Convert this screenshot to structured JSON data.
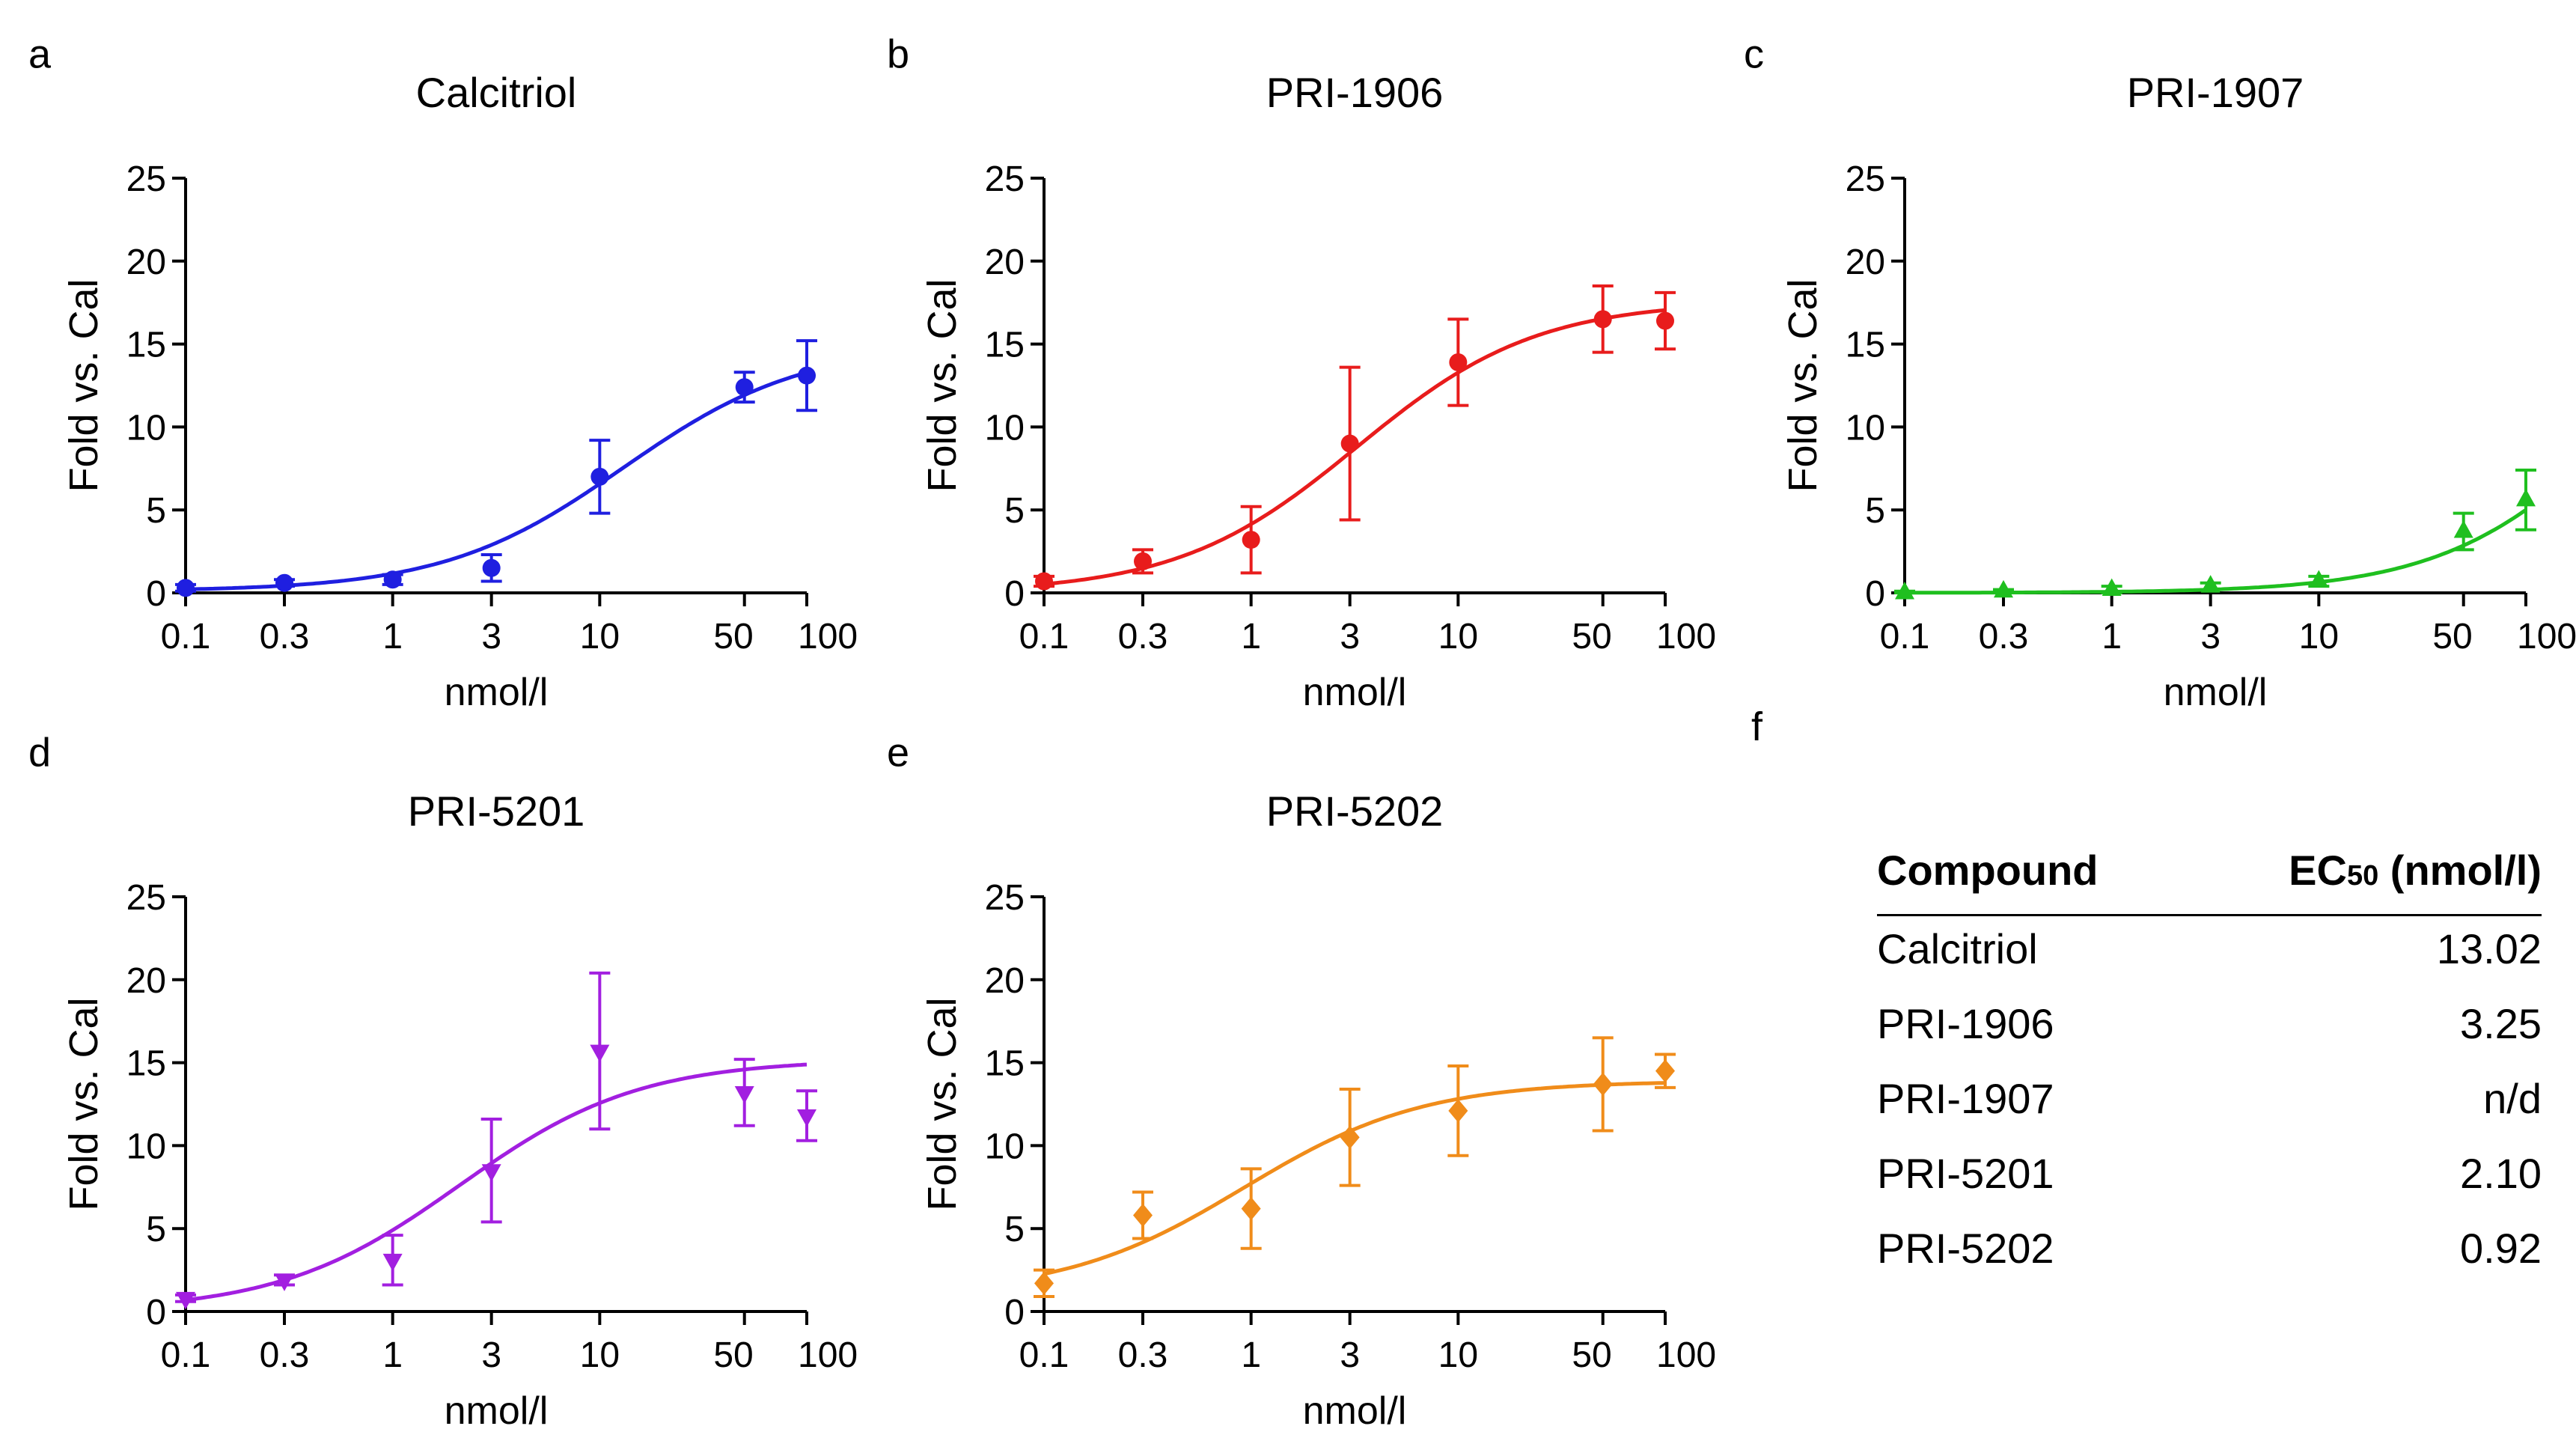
{
  "panel_letters": [
    "a",
    "b",
    "c",
    "d",
    "e",
    "f"
  ],
  "chart_data": [
    {
      "type": "line",
      "panel": "a",
      "title": "Calcitriol",
      "xlabel": "nmol/l",
      "ylabel": "Fold vs. Cal",
      "xscale": "log",
      "xlim": [
        0.1,
        100
      ],
      "ylim": [
        0,
        25
      ],
      "xticks": [
        "0.1",
        "0.3",
        "1",
        "3",
        "10",
        "50",
        "100"
      ],
      "yticks": [
        "0",
        "5",
        "10",
        "15",
        "20",
        "25"
      ],
      "color": "#1f1fe0",
      "marker": "circle",
      "x": [
        0.1,
        0.3,
        1,
        3,
        10,
        50,
        100
      ],
      "y": [
        0.3,
        0.6,
        0.8,
        1.5,
        7.0,
        12.4,
        13.1
      ],
      "err": [
        0.2,
        0.2,
        0.3,
        0.8,
        2.2,
        0.9,
        2.1
      ],
      "fit": {
        "bottom": 0.1,
        "top": 15.0,
        "ec50": 13.02,
        "hill": 1.0
      }
    },
    {
      "type": "line",
      "panel": "b",
      "title": "PRI-1906",
      "xlabel": "nmol/l",
      "ylabel": "Fold vs. Cal",
      "xscale": "log",
      "xlim": [
        0.1,
        100
      ],
      "ylim": [
        0,
        25
      ],
      "xticks": [
        "0.1",
        "0.3",
        "1",
        "3",
        "10",
        "50",
        "100"
      ],
      "yticks": [
        "0",
        "5",
        "10",
        "15",
        "20",
        "25"
      ],
      "color": "#e81c1c",
      "marker": "circle",
      "x": [
        0.1,
        0.3,
        1,
        3,
        10,
        50,
        100
      ],
      "y": [
        0.7,
        1.9,
        3.2,
        9.0,
        13.9,
        16.5,
        16.4
      ],
      "err": [
        0.3,
        0.7,
        2.0,
        4.6,
        2.6,
        2.0,
        1.7
      ],
      "fit": {
        "bottom": 0.0,
        "top": 17.6,
        "ec50": 3.25,
        "hill": 1.0
      }
    },
    {
      "type": "line",
      "panel": "c",
      "title": "PRI-1907",
      "xlabel": "nmol/l",
      "ylabel": "Fold vs. Cal",
      "xscale": "log",
      "xlim": [
        0.1,
        100
      ],
      "ylim": [
        0,
        25
      ],
      "xticks": [
        "0.1",
        "0.3",
        "1",
        "3",
        "10",
        "50",
        "100"
      ],
      "yticks": [
        "0",
        "5",
        "10",
        "15",
        "20",
        "25"
      ],
      "color": "#1fbf1f",
      "marker": "triangle-up",
      "x": [
        0.1,
        0.3,
        1,
        3,
        10,
        50,
        100
      ],
      "y": [
        0.0,
        0.1,
        0.2,
        0.4,
        0.7,
        3.7,
        5.6
      ],
      "err": [
        0.1,
        0.1,
        0.2,
        0.2,
        0.3,
        1.1,
        1.8
      ],
      "fit": {
        "bottom": 0.0,
        "top": 20.0,
        "ec50": 300,
        "hill": 1.0
      }
    },
    {
      "type": "line",
      "panel": "d",
      "title": "PRI-5201",
      "xlabel": "nmol/l",
      "ylabel": "Fold vs. Cal",
      "xscale": "log",
      "xlim": [
        0.1,
        100
      ],
      "ylim": [
        0,
        25
      ],
      "xticks": [
        "0.1",
        "0.3",
        "1",
        "3",
        "10",
        "50",
        "100"
      ],
      "yticks": [
        "0",
        "5",
        "10",
        "15",
        "20",
        "25"
      ],
      "color": "#a21fe0",
      "marker": "triangle-down",
      "x": [
        0.1,
        0.3,
        1,
        3,
        10,
        50,
        100
      ],
      "y": [
        0.8,
        1.9,
        3.1,
        8.5,
        15.7,
        13.2,
        11.8
      ],
      "err": [
        0.2,
        0.3,
        1.5,
        3.1,
        4.7,
        2.0,
        1.5
      ],
      "fit": {
        "bottom": 0.0,
        "top": 15.2,
        "ec50": 2.1,
        "hill": 1.0
      }
    },
    {
      "type": "line",
      "panel": "e",
      "title": "PRI-5202",
      "xlabel": "nmol/l",
      "ylabel": "Fold vs. Cal",
      "xscale": "log",
      "xlim": [
        0.1,
        100
      ],
      "ylim": [
        0,
        25
      ],
      "xticks": [
        "0.1",
        "0.3",
        "1",
        "3",
        "10",
        "50",
        "100"
      ],
      "yticks": [
        "0",
        "5",
        "10",
        "15",
        "20",
        "25"
      ],
      "color": "#f08c1a",
      "marker": "diamond",
      "x": [
        0.1,
        0.3,
        1,
        3,
        10,
        50,
        100
      ],
      "y": [
        1.7,
        5.8,
        6.2,
        10.5,
        12.1,
        13.7,
        14.5
      ],
      "err": [
        0.8,
        1.4,
        2.4,
        2.9,
        2.7,
        2.8,
        1.0
      ],
      "fit": {
        "bottom": 1.0,
        "top": 13.9,
        "ec50": 0.92,
        "hill": 1.0
      }
    }
  ],
  "table": {
    "panel": "f",
    "header": {
      "compound": "Compound",
      "ec50_main": "EC",
      "ec50_sub": "50",
      "ec50_unit": " (nmol/l)"
    },
    "rows": [
      {
        "compound": "Calcitriol",
        "ec50": "13.02"
      },
      {
        "compound": "PRI-1906",
        "ec50": "3.25"
      },
      {
        "compound": "PRI-1907",
        "ec50": "n/d"
      },
      {
        "compound": "PRI-5201",
        "ec50": "2.10"
      },
      {
        "compound": "PRI-5202",
        "ec50": "0.92"
      }
    ]
  }
}
